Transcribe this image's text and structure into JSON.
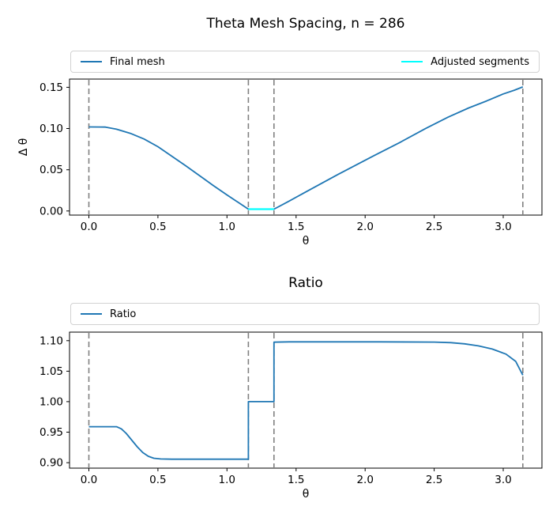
{
  "chart_data": [
    {
      "type": "line",
      "title": "Theta Mesh Spacing, n = 286",
      "xlabel": "θ",
      "ylabel": "Δ θ",
      "xlim": [
        -0.14,
        3.28
      ],
      "ylim": [
        -0.005,
        0.16
      ],
      "grid": false,
      "legend_position": "above-expanded",
      "xticks": [
        {
          "v": 0.0,
          "label": "0.0"
        },
        {
          "v": 0.5,
          "label": "0.5"
        },
        {
          "v": 1.0,
          "label": "1.0"
        },
        {
          "v": 1.5,
          "label": "1.5"
        },
        {
          "v": 2.0,
          "label": "2.0"
        },
        {
          "v": 2.5,
          "label": "2.5"
        },
        {
          "v": 3.0,
          "label": "3.0"
        }
      ],
      "yticks": [
        {
          "v": 0.0,
          "label": "0.00"
        },
        {
          "v": 0.05,
          "label": "0.05"
        },
        {
          "v": 0.1,
          "label": "0.10"
        },
        {
          "v": 0.15,
          "label": "0.15"
        }
      ],
      "vlines": {
        "x": [
          0,
          1.155,
          1.34,
          3.1416
        ],
        "color": "#808080",
        "style": "dashed"
      },
      "legend": [
        {
          "label": "Final mesh",
          "color": "#1f77b4"
        },
        {
          "label": "Adjusted segments",
          "color": "#00ffff"
        }
      ],
      "series": [
        {
          "name": "Final mesh",
          "color": "#1f77b4",
          "width": 1.8,
          "points": [
            [
              0.0,
              0.102
            ],
            [
              0.12,
              0.1018
            ],
            [
              0.2,
              0.0992
            ],
            [
              0.3,
              0.0942
            ],
            [
              0.4,
              0.0873
            ],
            [
              0.5,
              0.078
            ],
            [
              0.6,
              0.0665
            ],
            [
              0.7,
              0.055
            ],
            [
              0.8,
              0.043
            ],
            [
              0.9,
              0.031
            ],
            [
              1.0,
              0.0195
            ],
            [
              1.08,
              0.0105
            ],
            [
              1.155,
              0.0022
            ],
            [
              1.34,
              0.0022
            ],
            [
              1.45,
              0.012
            ],
            [
              1.6,
              0.0258
            ],
            [
              1.8,
              0.044
            ],
            [
              2.06,
              0.0668
            ],
            [
              2.25,
              0.083
            ],
            [
              2.44,
              0.1002
            ],
            [
              2.6,
              0.1138
            ],
            [
              2.75,
              0.125
            ],
            [
              2.88,
              0.1335
            ],
            [
              3.0,
              0.142
            ],
            [
              3.08,
              0.1465
            ],
            [
              3.1416,
              0.1505
            ]
          ]
        },
        {
          "name": "Adjusted segments",
          "color": "#00ffff",
          "width": 2.2,
          "points": [
            [
              1.155,
              0.0022
            ],
            [
              1.34,
              0.0022
            ]
          ]
        }
      ]
    },
    {
      "type": "line",
      "title": "Ratio",
      "xlabel": "θ",
      "ylabel": "",
      "xlim": [
        -0.14,
        3.28
      ],
      "ylim": [
        0.891,
        1.114
      ],
      "grid": false,
      "legend_position": "above-expanded",
      "xticks": [
        {
          "v": 0.0,
          "label": "0.0"
        },
        {
          "v": 0.5,
          "label": "0.5"
        },
        {
          "v": 1.0,
          "label": "1.0"
        },
        {
          "v": 1.5,
          "label": "1.5"
        },
        {
          "v": 2.0,
          "label": "2.0"
        },
        {
          "v": 2.5,
          "label": "2.5"
        },
        {
          "v": 3.0,
          "label": "3.0"
        }
      ],
      "yticks": [
        {
          "v": 0.9,
          "label": "0.90"
        },
        {
          "v": 0.95,
          "label": "0.95"
        },
        {
          "v": 1.0,
          "label": "1.00"
        },
        {
          "v": 1.05,
          "label": "1.05"
        },
        {
          "v": 1.1,
          "label": "1.10"
        }
      ],
      "vlines": {
        "x": [
          0,
          1.155,
          1.34,
          3.1416
        ],
        "color": "#808080",
        "style": "dashed"
      },
      "legend": [
        {
          "label": "Ratio",
          "color": "#1f77b4"
        }
      ],
      "series": [
        {
          "name": "Ratio",
          "color": "#1f77b4",
          "width": 1.8,
          "points": [
            [
              0.0,
              0.959
            ],
            [
              0.2,
              0.959
            ],
            [
              0.235,
              0.9555
            ],
            [
              0.27,
              0.948
            ],
            [
              0.31,
              0.937
            ],
            [
              0.35,
              0.926
            ],
            [
              0.39,
              0.9165
            ],
            [
              0.43,
              0.9105
            ],
            [
              0.47,
              0.9072
            ],
            [
              0.52,
              0.906
            ],
            [
              0.6,
              0.9056
            ],
            [
              1.155,
              0.9056
            ],
            [
              1.155,
              1.0
            ],
            [
              1.34,
              1.0
            ],
            [
              1.34,
              1.0975
            ],
            [
              1.45,
              1.098
            ],
            [
              2.1,
              1.098
            ],
            [
              2.5,
              1.0977
            ],
            [
              2.62,
              1.0968
            ],
            [
              2.72,
              1.0948
            ],
            [
              2.82,
              1.0915
            ],
            [
              2.92,
              1.0862
            ],
            [
              3.02,
              1.078
            ],
            [
              3.09,
              1.066
            ],
            [
              3.1416,
              1.0435
            ]
          ]
        }
      ]
    }
  ]
}
